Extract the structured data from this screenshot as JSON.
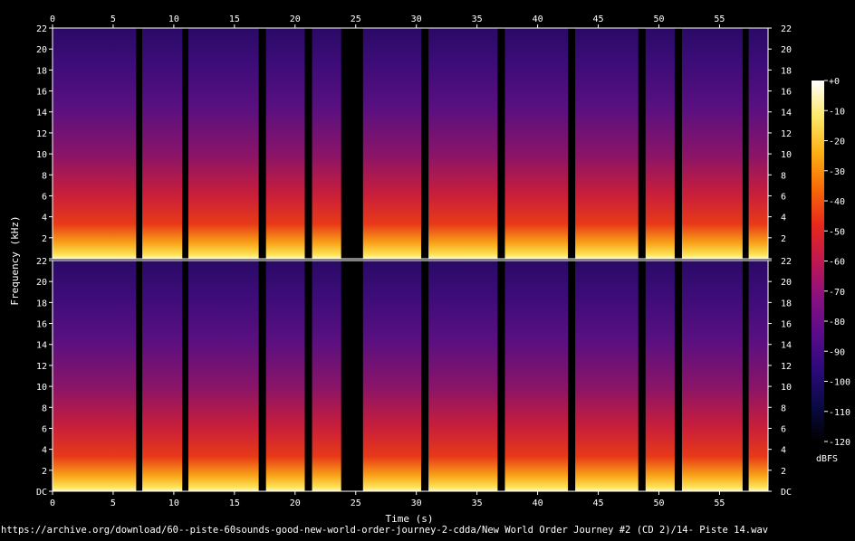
{
  "chart_data": {
    "type": "heatmap",
    "title": "",
    "xlabel": "Time (s)",
    "ylabel": "Frequency (kHz)",
    "xlim": [
      0,
      59
    ],
    "ylim": [
      0,
      22
    ],
    "x_ticks": [
      0,
      5,
      10,
      15,
      20,
      25,
      30,
      35,
      40,
      45,
      50,
      55
    ],
    "y_tick_labels": [
      "DC",
      "2",
      "4",
      "6",
      "8",
      "10",
      "12",
      "14",
      "16",
      "18",
      "20",
      "22"
    ],
    "channels": [
      "top",
      "bottom"
    ],
    "colorbar": {
      "label": "dBFS",
      "range": [
        -120,
        0
      ],
      "tick_labels": [
        "+0",
        "-10",
        "-20",
        "-30",
        "-40",
        "-50",
        "-60",
        "-70",
        "-80",
        "-90",
        "-100",
        "-110",
        "-120"
      ],
      "colors": [
        "#000000",
        "#0a0a45",
        "#2c0a7c",
        "#5a0c8a",
        "#8a1080",
        "#c01850",
        "#e8281c",
        "#f86a08",
        "#fcb014",
        "#fce868",
        "#ffffff"
      ]
    },
    "silent_gaps_s": [
      {
        "start": 6.9,
        "end": 7.4
      },
      {
        "start": 10.7,
        "end": 11.2
      },
      {
        "start": 17.0,
        "end": 17.6
      },
      {
        "start": 20.8,
        "end": 21.4
      },
      {
        "start": 23.8,
        "end": 25.6
      },
      {
        "start": 30.4,
        "end": 31.0
      },
      {
        "start": 36.7,
        "end": 37.3
      },
      {
        "start": 42.5,
        "end": 43.1
      },
      {
        "start": 48.3,
        "end": 48.9
      },
      {
        "start": 51.3,
        "end": 51.9
      },
      {
        "start": 56.9,
        "end": 57.4
      }
    ]
  },
  "footer": {
    "source": "https://archive.org/download/60--piste-60sounds-good-new-world-order-journey-2-cdda/New World Order Journey #2 (CD 2)/14- Piste 14.wav"
  }
}
